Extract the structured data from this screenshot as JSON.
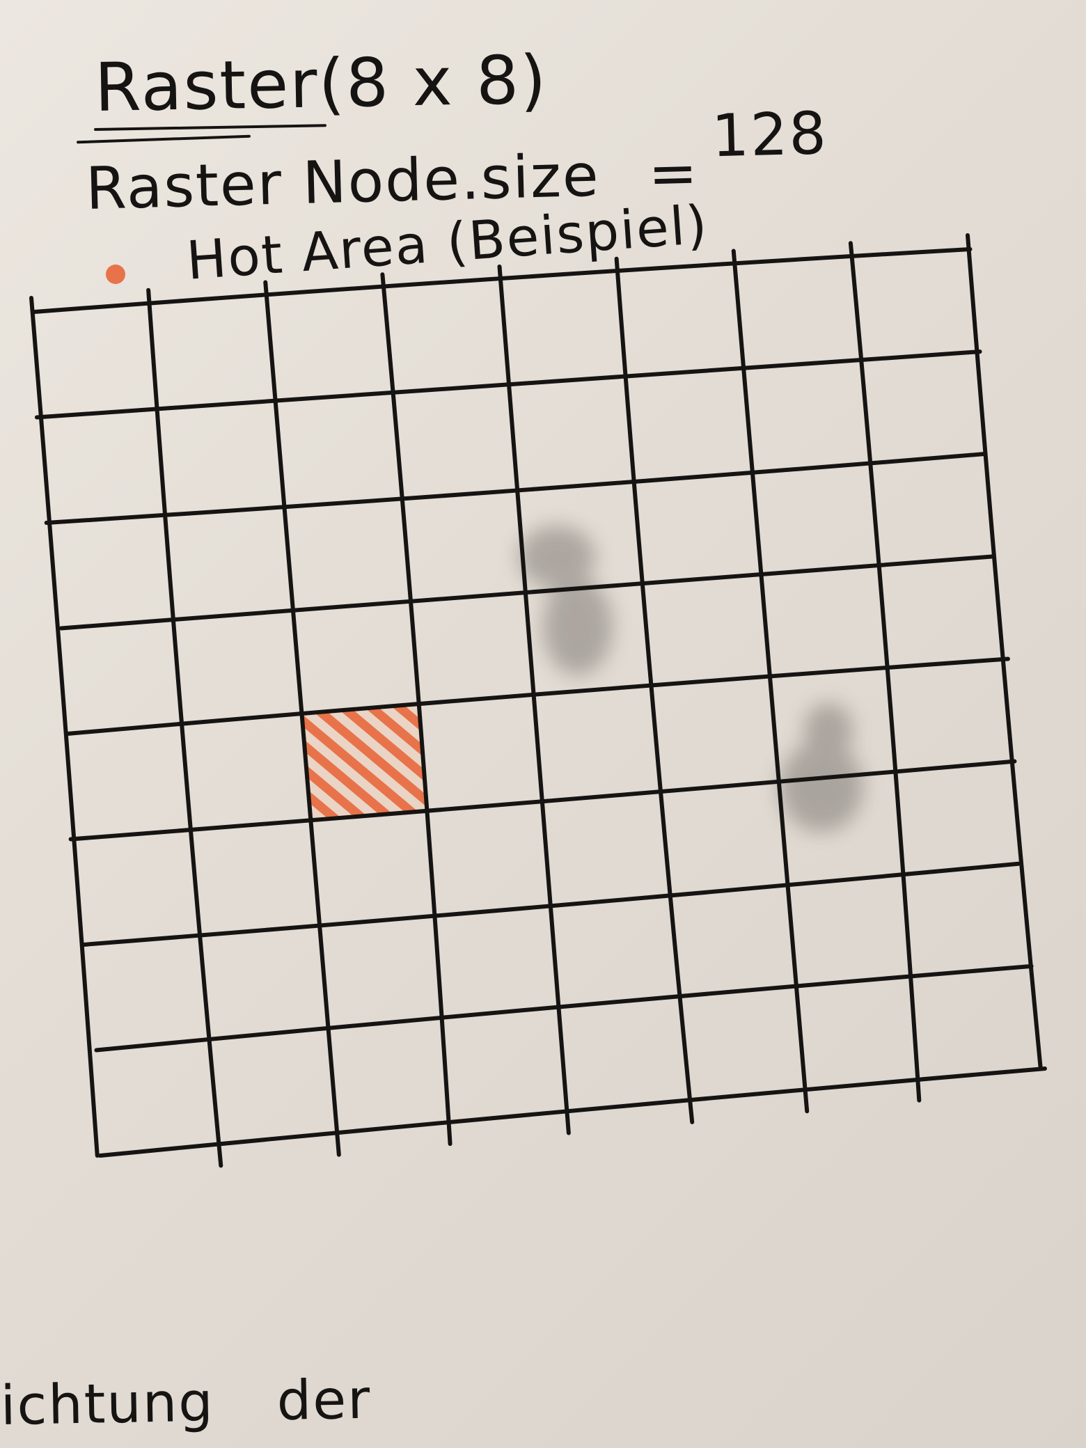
{
  "heading": {
    "word": "Raster",
    "dims": "(8 x 8)"
  },
  "size_line": {
    "label": "Raster Node.size",
    "equals": "=",
    "value": "128"
  },
  "legend": {
    "color": "#e8734a",
    "label": "Hot Area (Beispiel)"
  },
  "grid": {
    "rows": 8,
    "cols": 8,
    "hot_cell": {
      "row": 4,
      "col": 2
    },
    "hot_color": "#e8734a",
    "line_color": "#161412"
  },
  "footer": {
    "word1": "ichtung",
    "word2": "der"
  }
}
